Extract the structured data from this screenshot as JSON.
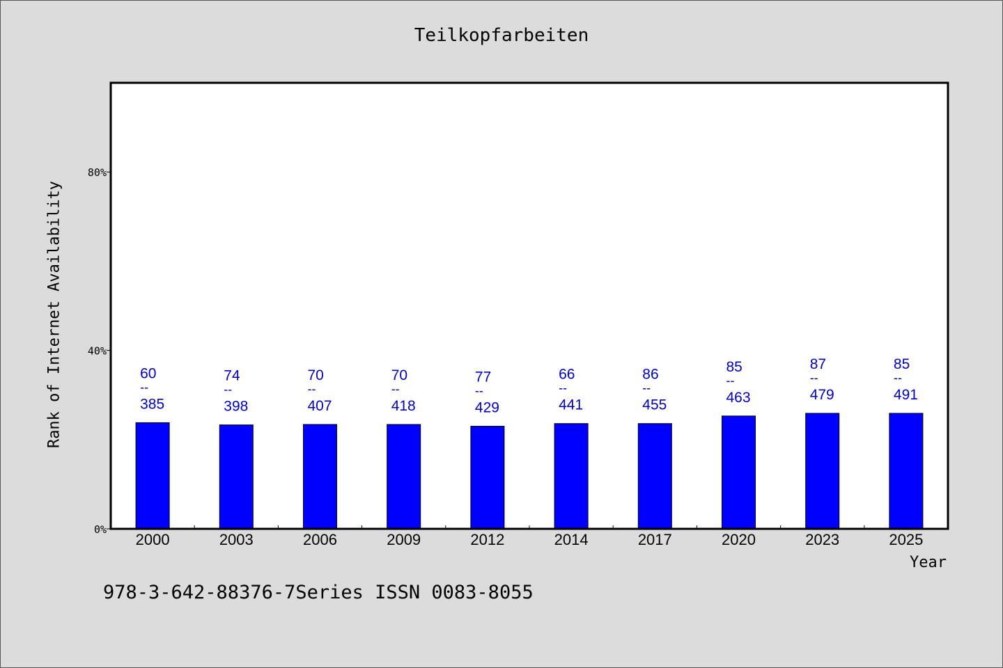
{
  "chart_data": {
    "type": "bar",
    "title": "Teilkopfarbeiten",
    "xlabel": "Year",
    "ylabel": "Rank of Internet Availability",
    "categories": [
      "2000",
      "2003",
      "2006",
      "2009",
      "2012",
      "2014",
      "2017",
      "2020",
      "2023",
      "2025"
    ],
    "values": [
      23.8,
      23.3,
      23.4,
      23.4,
      23.0,
      23.6,
      23.6,
      25.3,
      25.9,
      25.9
    ],
    "ylim": [
      0,
      100
    ],
    "yticks": [
      0,
      40,
      80
    ],
    "ytick_labels": [
      "0%",
      "40%",
      "80%"
    ],
    "data_labels": [
      {
        "top": "60",
        "sep": "--",
        "bottom": "385"
      },
      {
        "top": "74",
        "sep": "--",
        "bottom": "398"
      },
      {
        "top": "70",
        "sep": "--",
        "bottom": "407"
      },
      {
        "top": "70",
        "sep": "--",
        "bottom": "418"
      },
      {
        "top": "77",
        "sep": "--",
        "bottom": "429"
      },
      {
        "top": "66",
        "sep": "--",
        "bottom": "441"
      },
      {
        "top": "86",
        "sep": "--",
        "bottom": "455"
      },
      {
        "top": "85",
        "sep": "--",
        "bottom": "463"
      },
      {
        "top": "87",
        "sep": "--",
        "bottom": "479"
      },
      {
        "top": "85",
        "sep": "--",
        "bottom": "491"
      }
    ],
    "bar_color": "#0000ff",
    "label_color": "#0000cc",
    "grid": false,
    "legend": "none"
  },
  "footer": "978-3-642-88376-7Series ISSN 0083-8055"
}
